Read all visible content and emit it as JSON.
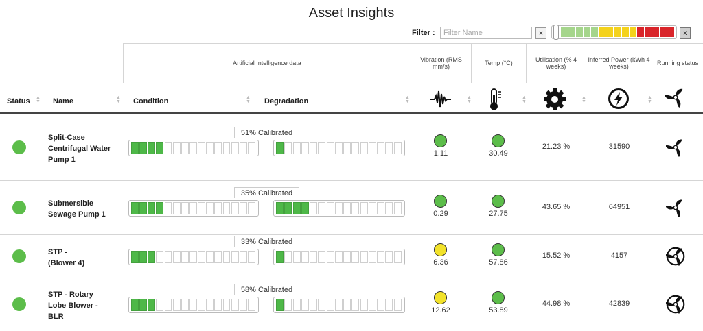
{
  "page_title": "Asset Insights",
  "filter": {
    "label": "Filter :",
    "name_placeholder": "Filter Name",
    "clear_label": "x",
    "status_clear_label": "x",
    "status_scale_colors": [
      "#a5d58c",
      "#a5d58c",
      "#a5d58c",
      "#a5d58c",
      "#a5d58c",
      "#f4d21c",
      "#f4d21c",
      "#f4d21c",
      "#f4d21c",
      "#f4d21c",
      "#d9252a",
      "#d9252a",
      "#d9252a",
      "#d9252a",
      "#d9252a"
    ]
  },
  "header_groups": {
    "ai_data": "Artificial Intelligence data",
    "vibration": "Vibration (RMS mm/s)",
    "temp": "Temp (°C)",
    "utilisation": "Utilisation (% 4 weeks)",
    "inferred_power": "Inferred Power (kWh 4 weeks)",
    "running_status": "Running status"
  },
  "columns": {
    "status": "Status",
    "name": "Name",
    "condition": "Condition",
    "degradation": "Degradation"
  },
  "icons": {
    "vibration": "vibration-wave-icon",
    "temp": "thermometer-icon",
    "utilisation": "gear-icon",
    "power": "lightning-icon",
    "running": "fan-icon"
  },
  "colors": {
    "status_green": "#5cbd4a",
    "indicator_green": "#5cbd4a",
    "indicator_yellow": "#f2e22a",
    "bar_fill": "#4eb848"
  },
  "bar_total_segments": 15,
  "rows": [
    {
      "name_lines": [
        "Split-Case",
        "Centrifugal Water",
        "Pump 1"
      ],
      "calibrated": "51% Calibrated",
      "condition_filled": 4,
      "degradation_filled": 1,
      "vibration_status": "green",
      "vibration": "1.11",
      "temp_status": "green",
      "temp": "30.49",
      "utilisation": "21.23 %",
      "power": "31590"
    },
    {
      "name_lines": [
        "Submersible",
        "Sewage Pump 1"
      ],
      "calibrated": "35% Calibrated",
      "condition_filled": 4,
      "degradation_filled": 4,
      "vibration_status": "green",
      "vibration": "0.29",
      "temp_status": "green",
      "temp": "27.75",
      "utilisation": "43.65 %",
      "power": "64951"
    },
    {
      "name_lines": [
        "STP -",
        "(Blower 4)"
      ],
      "calibrated": "33% Calibrated",
      "condition_filled": 3,
      "degradation_filled": 1,
      "vibration_status": "yellow",
      "vibration": "6.36",
      "temp_status": "green",
      "temp": "57.86",
      "utilisation": "15.52 %",
      "power": "4157"
    },
    {
      "name_lines": [
        "STP - Rotary",
        "Lobe Blower -",
        "BLR"
      ],
      "calibrated": "58% Calibrated",
      "condition_filled": 3,
      "degradation_filled": 1,
      "vibration_status": "yellow",
      "vibration": "12.62",
      "temp_status": "green",
      "temp": "53.89",
      "utilisation": "44.98 %",
      "power": "42839"
    }
  ]
}
